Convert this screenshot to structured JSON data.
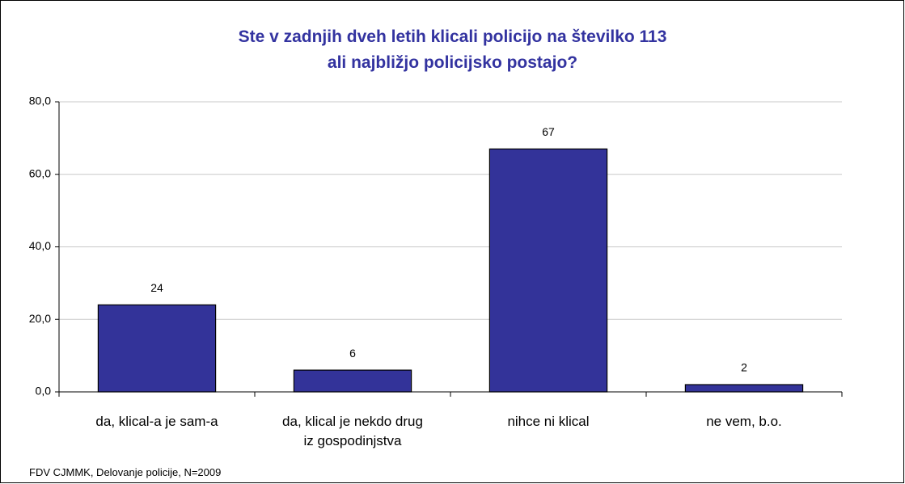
{
  "chart_data": {
    "type": "bar",
    "title": "Ste v zadnjih dveh letih klicali policijo na številko 113\nali najbližjo policijsko postajo?",
    "categories": [
      "da, klical-a je sam-a",
      "da, klical je nekdo drug\niz gospodinjstva",
      "nihce ni klical",
      "ne vem, b.o."
    ],
    "values": [
      24,
      6,
      67,
      2
    ],
    "color": "#333399",
    "ylim": [
      0,
      80
    ],
    "yticks": [
      {
        "value": 0,
        "label": "0,0"
      },
      {
        "value": 20,
        "label": "20,0"
      },
      {
        "value": 40,
        "label": "40,0"
      },
      {
        "value": 60,
        "label": "60,0"
      },
      {
        "value": 80,
        "label": "80,0"
      }
    ],
    "grid": true,
    "source": "FDV CJMMK, Delovanje policije, N=2009"
  }
}
